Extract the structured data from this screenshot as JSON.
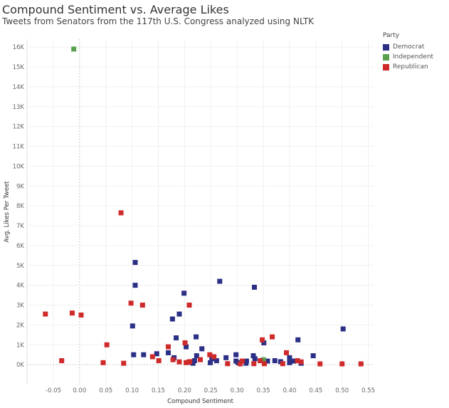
{
  "chart_data": {
    "type": "scatter",
    "title": "Compound Sentiment vs. Average Likes",
    "subtitle": "Tweets from Senators from the 117th U.S. Congress analyzed using NLTK",
    "xlabel": "Compound Sentiment",
    "ylabel": "Avg. Likes Per Tweet",
    "xlim": [
      -0.1,
      0.56
    ],
    "ylim": [
      -1000,
      16400
    ],
    "x_ticks": [
      "-0.05",
      "0.00",
      "0.05",
      "0.10",
      "0.15",
      "0.20",
      "0.25",
      "0.30",
      "0.35",
      "0.40",
      "0.45",
      "0.50",
      "0.55"
    ],
    "y_ticks": [
      "0K",
      "1K",
      "2K",
      "3K",
      "4K",
      "5K",
      "6K",
      "7K",
      "8K",
      "9K",
      "10K",
      "11K",
      "12K",
      "13K",
      "14K",
      "15K",
      "16K"
    ],
    "grid": true,
    "legend": {
      "title": "Party",
      "position": "right"
    },
    "series": [
      {
        "name": "Democrat",
        "color": "#2b2f86",
        "points": [
          [
            0.106,
            5150
          ],
          [
            0.106,
            4000
          ],
          [
            0.101,
            1950
          ],
          [
            0.103,
            500
          ],
          [
            0.122,
            500
          ],
          [
            0.147,
            550
          ],
          [
            0.169,
            600
          ],
          [
            0.177,
            2300
          ],
          [
            0.19,
            2550
          ],
          [
            0.184,
            1350
          ],
          [
            0.18,
            350
          ],
          [
            0.199,
            3600
          ],
          [
            0.203,
            900
          ],
          [
            0.222,
            1400
          ],
          [
            0.219,
            200
          ],
          [
            0.223,
            450
          ],
          [
            0.216,
            70
          ],
          [
            0.233,
            800
          ],
          [
            0.267,
            4200
          ],
          [
            0.333,
            3900
          ],
          [
            0.249,
            100
          ],
          [
            0.252,
            300
          ],
          [
            0.261,
            200
          ],
          [
            0.279,
            350
          ],
          [
            0.298,
            500
          ],
          [
            0.298,
            180
          ],
          [
            0.302,
            100
          ],
          [
            0.318,
            180
          ],
          [
            0.317,
            70
          ],
          [
            0.331,
            450
          ],
          [
            0.334,
            300
          ],
          [
            0.351,
            1100
          ],
          [
            0.358,
            180
          ],
          [
            0.372,
            200
          ],
          [
            0.383,
            150
          ],
          [
            0.4,
            350
          ],
          [
            0.4,
            100
          ],
          [
            0.408,
            180
          ],
          [
            0.416,
            1250
          ],
          [
            0.422,
            70
          ],
          [
            0.445,
            450
          ],
          [
            0.502,
            1800
          ]
        ]
      },
      {
        "name": "Independent",
        "color": "#59a14f",
        "points": [
          [
            -0.011,
            15900
          ],
          [
            0.35,
            250
          ]
        ]
      },
      {
        "name": "Republican",
        "color": "#cf2a2a",
        "points": [
          [
            -0.065,
            2550
          ],
          [
            -0.034,
            200
          ],
          [
            -0.014,
            2600
          ],
          [
            0.003,
            2500
          ],
          [
            0.045,
            100
          ],
          [
            0.052,
            1000
          ],
          [
            0.084,
            70
          ],
          [
            0.079,
            7650
          ],
          [
            0.098,
            3100
          ],
          [
            0.12,
            3000
          ],
          [
            0.139,
            400
          ],
          [
            0.151,
            200
          ],
          [
            0.169,
            900
          ],
          [
            0.178,
            250
          ],
          [
            0.19,
            140
          ],
          [
            0.201,
            1100
          ],
          [
            0.203,
            100
          ],
          [
            0.207,
            120
          ],
          [
            0.21,
            150
          ],
          [
            0.209,
            3000
          ],
          [
            0.23,
            250
          ],
          [
            0.248,
            500
          ],
          [
            0.256,
            400
          ],
          [
            0.282,
            50
          ],
          [
            0.306,
            40
          ],
          [
            0.31,
            180
          ],
          [
            0.332,
            50
          ],
          [
            0.344,
            200
          ],
          [
            0.348,
            1250
          ],
          [
            0.352,
            50
          ],
          [
            0.367,
            1400
          ],
          [
            0.387,
            50
          ],
          [
            0.394,
            600
          ],
          [
            0.415,
            200
          ],
          [
            0.422,
            140
          ],
          [
            0.458,
            40
          ],
          [
            0.5,
            40
          ],
          [
            0.536,
            40
          ]
        ]
      }
    ]
  }
}
